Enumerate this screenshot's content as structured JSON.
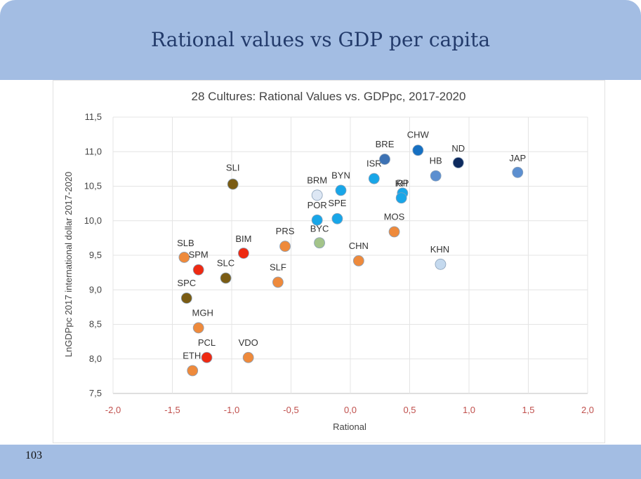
{
  "slide": {
    "title": "Rational values vs GDP per capita",
    "page_number": "103"
  },
  "colors": {
    "band": "#a3bde3",
    "x_tick": "#c0504d"
  },
  "chart_data": {
    "type": "scatter",
    "title": "28 Cultures: Rational Values vs. GDPpc, 2017-2020",
    "xlabel": "Rational",
    "ylabel": "LnGDPpc 2017 international dollar 2017-2020",
    "xlim": [
      -2.0,
      2.0
    ],
    "ylim": [
      7.5,
      11.5
    ],
    "xticks": [
      "-2,0",
      "-1,5",
      "-1,0",
      "-0,5",
      "0,0",
      "0,5",
      "1,0",
      "1,5",
      "2,0"
    ],
    "yticks": [
      "7,5",
      "8,0",
      "8,5",
      "9,0",
      "9,5",
      "10,0",
      "10,5",
      "11,0",
      "11,5"
    ],
    "grid": true,
    "points": [
      {
        "label": "SLI",
        "x": -0.99,
        "y": 10.53,
        "color": "#7a5c14"
      },
      {
        "label": "SLB",
        "x": -1.4,
        "y": 9.47,
        "color": "#ee8a3c"
      },
      {
        "label": "SPM",
        "x": -1.28,
        "y": 9.29,
        "color": "#ee2a12"
      },
      {
        "label": "SLC",
        "x": -1.05,
        "y": 9.17,
        "color": "#7a5c14"
      },
      {
        "label": "SPC",
        "x": -1.38,
        "y": 8.88,
        "color": "#7a5c14"
      },
      {
        "label": "MGH",
        "x": -1.28,
        "y": 8.45,
        "color": "#ee8a3c"
      },
      {
        "label": "PCL",
        "x": -1.21,
        "y": 8.02,
        "color": "#ee2a12"
      },
      {
        "label": "ETH",
        "x": -1.33,
        "y": 7.83,
        "color": "#ee8a3c"
      },
      {
        "label": "VDO",
        "x": -0.86,
        "y": 8.02,
        "color": "#ee8a3c"
      },
      {
        "label": "BIM",
        "x": -0.9,
        "y": 9.53,
        "color": "#ee2a12"
      },
      {
        "label": "PRS",
        "x": -0.55,
        "y": 9.63,
        "color": "#ee8a3c"
      },
      {
        "label": "SLF",
        "x": -0.61,
        "y": 9.11,
        "color": "#ee8a3c"
      },
      {
        "label": "BRM",
        "x": -0.28,
        "y": 10.37,
        "color": "#dde7f4"
      },
      {
        "label": "POR",
        "x": -0.28,
        "y": 10.01,
        "color": "#18a6e8"
      },
      {
        "label": "SPE",
        "x": -0.11,
        "y": 10.03,
        "color": "#18a6e8"
      },
      {
        "label": "BYN",
        "x": -0.08,
        "y": 10.44,
        "color": "#18a6e8"
      },
      {
        "label": "BYC",
        "x": -0.26,
        "y": 9.68,
        "color": "#a3c48a"
      },
      {
        "label": "CHN",
        "x": 0.07,
        "y": 9.42,
        "color": "#ee8a3c"
      },
      {
        "label": "ISR",
        "x": 0.2,
        "y": 10.61,
        "color": "#18a6e8"
      },
      {
        "label": "BRE",
        "x": 0.29,
        "y": 10.89,
        "color": "#3d72b4"
      },
      {
        "label": "CHW",
        "x": 0.57,
        "y": 11.02,
        "color": "#1670c2"
      },
      {
        "label": "RP",
        "x": 0.44,
        "y": 10.4,
        "color": "#18a6e8"
      },
      {
        "label": "KH",
        "x": 0.43,
        "y": 10.33,
        "color": "#18a6e8"
      },
      {
        "label": "MOS",
        "x": 0.37,
        "y": 9.84,
        "color": "#ee8a3c"
      },
      {
        "label": "HB",
        "x": 0.72,
        "y": 10.65,
        "color": "#5c8fd0"
      },
      {
        "label": "ND",
        "x": 0.91,
        "y": 10.84,
        "color": "#0d2a5e"
      },
      {
        "label": "JAP",
        "x": 1.41,
        "y": 10.7,
        "color": "#5c8fd0"
      },
      {
        "label": "KHN",
        "x": 0.76,
        "y": 9.37,
        "color": "#c4d9ee"
      }
    ]
  }
}
